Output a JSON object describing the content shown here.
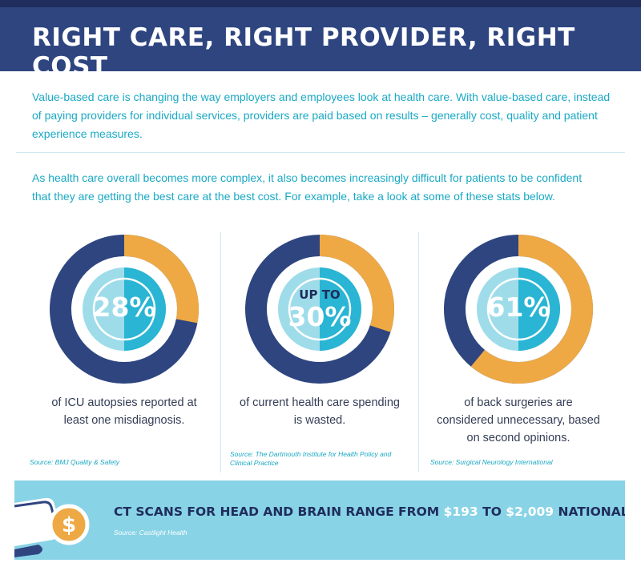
{
  "header": {
    "title": "RIGHT CARE, RIGHT PROVIDER, RIGHT COST"
  },
  "intro": {
    "paragraph_1": "Value-based care is changing the way employers and employees look at health care. With value-based care, instead of paying providers for individual services, providers are paid based on results – generally cost, quality and patient experience measures.",
    "paragraph_2": "As health care overall becomes more complex, it also becomes increasingly difficult for patients to be confident that they are getting the best care at the best cost. For example, take a look at some of these stats below."
  },
  "colors": {
    "navy": "#2e4580",
    "gold": "#eea944",
    "teal": "#29b5d3",
    "light_blue": "#88d3e6"
  },
  "stats": [
    {
      "percent": 28,
      "label": "28%",
      "description": "of ICU autopsies reported at least one misdiagnosis.",
      "source": "Source: BMJ Quality & Safety"
    },
    {
      "percent": 30,
      "prefix": "UP TO",
      "label": "30%",
      "description": "of current health care spending is wasted.",
      "source": "Source: The Dartmouth Institute for Health Policy and Clinical Practice"
    },
    {
      "percent": 61,
      "label": "61%",
      "description": "of back surgeries are considered unnecessary, based on second opinions.",
      "source": "Source: Surgical Neurology International"
    }
  ],
  "ct_scan": {
    "lead": "CT SCANS FOR HEAD AND BRAIN RANGE FROM",
    "low": "$193",
    "connector": "TO",
    "high": "$2,009",
    "tail": "NATIONALLY.",
    "source": "Source: Castlight Health",
    "icon_glyph": "$"
  }
}
